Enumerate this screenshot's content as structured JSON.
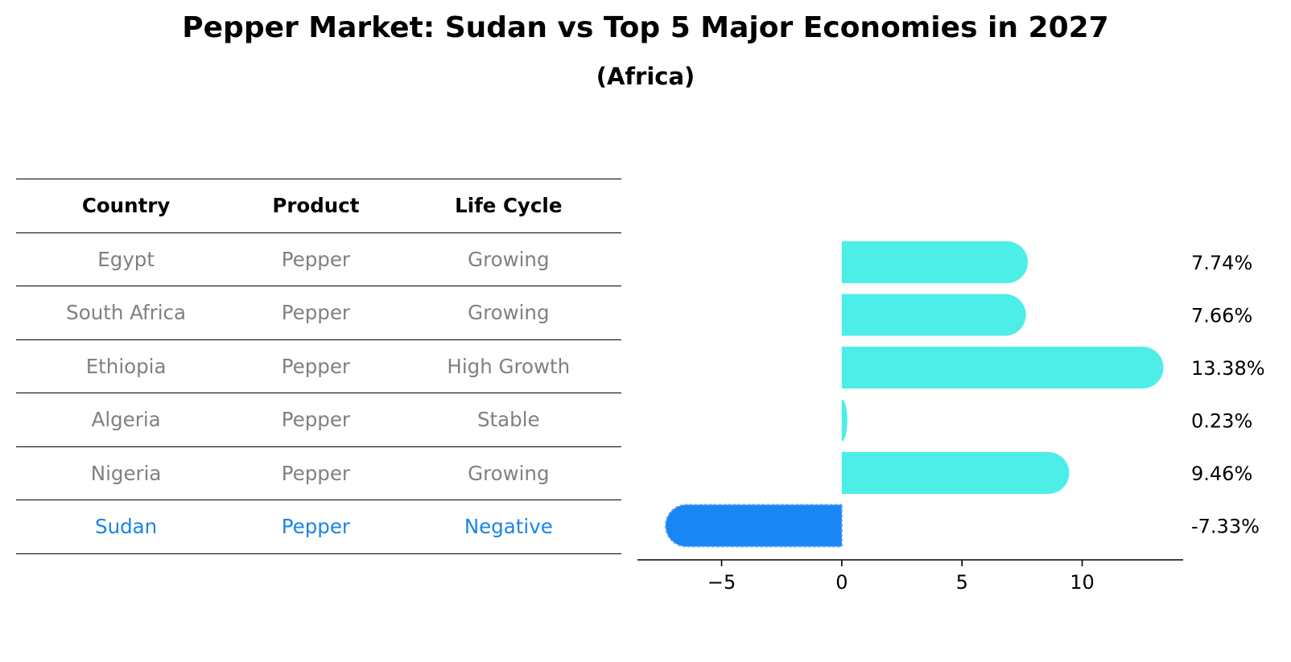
{
  "title": "Pepper Market: Sudan vs Top 5 Major Economies in 2027",
  "subtitle": "(Africa)",
  "table": {
    "headers": [
      "Country",
      "Product",
      "Life Cycle"
    ],
    "rows": [
      [
        "Egypt",
        "Pepper",
        "Growing"
      ],
      [
        "South Africa",
        "Pepper",
        "Growing"
      ],
      [
        "Ethiopia",
        "Pepper",
        "High Growth"
      ],
      [
        "Algeria",
        "Pepper",
        "Stable"
      ],
      [
        "Nigeria",
        "Pepper",
        "Growing"
      ],
      [
        "Sudan",
        "Pepper",
        "Negative"
      ]
    ],
    "highlight_row": 5
  },
  "chart_data": {
    "type": "bar",
    "orientation": "horizontal",
    "categories": [
      "Egypt",
      "South Africa",
      "Ethiopia",
      "Algeria",
      "Nigeria",
      "Sudan"
    ],
    "values": [
      7.74,
      7.66,
      13.38,
      0.23,
      9.46,
      -7.33
    ],
    "value_labels": [
      "7.74%",
      "7.66%",
      "13.38%",
      "0.23%",
      "9.46%",
      "-7.33%"
    ],
    "xlim": [
      -8.5,
      14.2
    ],
    "xticks": [
      -5,
      0,
      5,
      10
    ],
    "xtick_labels": [
      "−5",
      "0",
      "5",
      "10"
    ],
    "colors": {
      "positive": "#4deee8",
      "negative": "#1a85f5"
    },
    "highlight_index": 5,
    "grid": false
  }
}
